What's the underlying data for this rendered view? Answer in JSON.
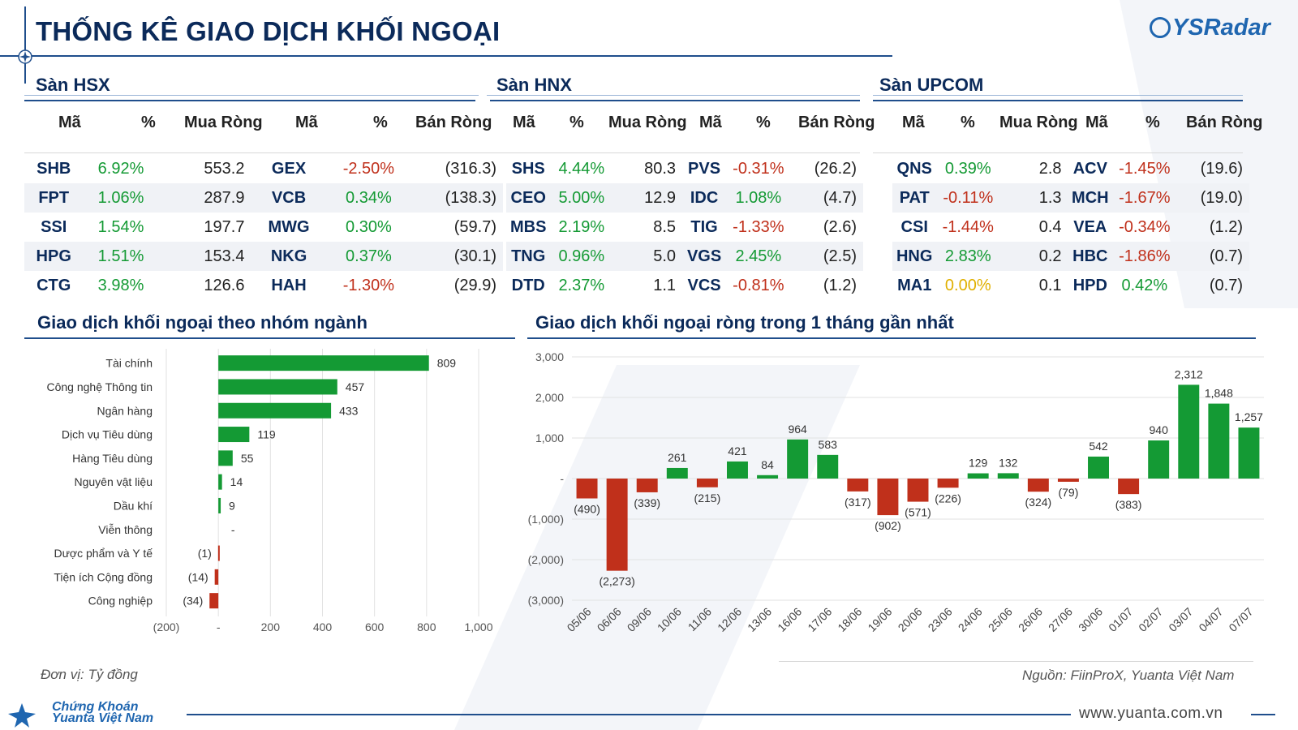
{
  "title": "THỐNG KÊ GIAO DỊCH KHỐI NGOẠI",
  "logo": "YSRadar",
  "markets": [
    {
      "name": "Sàn HSX",
      "headers": [
        "Mã",
        "%",
        "Mua Ròng",
        "Mã",
        "%",
        "Bán Ròng"
      ],
      "rows": [
        {
          "buy_code": "SHB",
          "buy_pct": "6.92%",
          "buy_dir": "up",
          "buy_val": "553.2",
          "sell_code": "GEX",
          "sell_pct": "-2.50%",
          "sell_dir": "down",
          "sell_val": "(316.3)"
        },
        {
          "buy_code": "FPT",
          "buy_pct": "1.06%",
          "buy_dir": "up",
          "buy_val": "287.9",
          "sell_code": "VCB",
          "sell_pct": "0.34%",
          "sell_dir": "up",
          "sell_val": "(138.3)"
        },
        {
          "buy_code": "SSI",
          "buy_pct": "1.54%",
          "buy_dir": "up",
          "buy_val": "197.7",
          "sell_code": "MWG",
          "sell_pct": "0.30%",
          "sell_dir": "up",
          "sell_val": "(59.7)"
        },
        {
          "buy_code": "HPG",
          "buy_pct": "1.51%",
          "buy_dir": "up",
          "buy_val": "153.4",
          "sell_code": "NKG",
          "sell_pct": "0.37%",
          "sell_dir": "up",
          "sell_val": "(30.1)"
        },
        {
          "buy_code": "CTG",
          "buy_pct": "3.98%",
          "buy_dir": "up",
          "buy_val": "126.6",
          "sell_code": "HAH",
          "sell_pct": "-1.30%",
          "sell_dir": "down",
          "sell_val": "(29.9)"
        }
      ]
    },
    {
      "name": "Sàn HNX",
      "headers": [
        "Mã",
        "%",
        "Mua Ròng",
        "Mã",
        "%",
        "Bán Ròng"
      ],
      "rows": [
        {
          "buy_code": "SHS",
          "buy_pct": "4.44%",
          "buy_dir": "up",
          "buy_val": "80.3",
          "sell_code": "PVS",
          "sell_pct": "-0.31%",
          "sell_dir": "down",
          "sell_val": "(26.2)"
        },
        {
          "buy_code": "CEO",
          "buy_pct": "5.00%",
          "buy_dir": "up",
          "buy_val": "12.9",
          "sell_code": "IDC",
          "sell_pct": "1.08%",
          "sell_dir": "up",
          "sell_val": "(4.7)"
        },
        {
          "buy_code": "MBS",
          "buy_pct": "2.19%",
          "buy_dir": "up",
          "buy_val": "8.5",
          "sell_code": "TIG",
          "sell_pct": "-1.33%",
          "sell_dir": "down",
          "sell_val": "(2.6)"
        },
        {
          "buy_code": "TNG",
          "buy_pct": "0.96%",
          "buy_dir": "up",
          "buy_val": "5.0",
          "sell_code": "VGS",
          "sell_pct": "2.45%",
          "sell_dir": "up",
          "sell_val": "(2.5)"
        },
        {
          "buy_code": "DTD",
          "buy_pct": "2.37%",
          "buy_dir": "up",
          "buy_val": "1.1",
          "sell_code": "VCS",
          "sell_pct": "-0.81%",
          "sell_dir": "down",
          "sell_val": "(1.2)"
        }
      ]
    },
    {
      "name": "Sàn UPCOM",
      "headers": [
        "Mã",
        "%",
        "Mua Ròng",
        "Mã",
        "%",
        "Bán Ròng"
      ],
      "rows": [
        {
          "buy_code": "QNS",
          "buy_pct": "0.39%",
          "buy_dir": "up",
          "buy_val": "2.8",
          "sell_code": "ACV",
          "sell_pct": "-1.45%",
          "sell_dir": "down",
          "sell_val": "(19.6)"
        },
        {
          "buy_code": "PAT",
          "buy_pct": "-0.11%",
          "buy_dir": "down",
          "buy_val": "1.3",
          "sell_code": "MCH",
          "sell_pct": "-1.67%",
          "sell_dir": "down",
          "sell_val": "(19.0)"
        },
        {
          "buy_code": "CSI",
          "buy_pct": "-1.44%",
          "buy_dir": "down",
          "buy_val": "0.4",
          "sell_code": "VEA",
          "sell_pct": "-0.34%",
          "sell_dir": "down",
          "sell_val": "(1.2)"
        },
        {
          "buy_code": "HNG",
          "buy_pct": "2.83%",
          "buy_dir": "up",
          "buy_val": "0.2",
          "sell_code": "HBC",
          "sell_pct": "-1.86%",
          "sell_dir": "down",
          "sell_val": "(0.7)"
        },
        {
          "buy_code": "MA1",
          "buy_pct": "0.00%",
          "buy_dir": "flat",
          "buy_val": "0.1",
          "sell_code": "HPD",
          "sell_pct": "0.42%",
          "sell_dir": "up",
          "sell_val": "(0.7)"
        }
      ]
    }
  ],
  "colors": {
    "positive": "#149a34",
    "negative": "#c0301b",
    "neutral": "#e0b000",
    "navy": "#0b2a5a"
  },
  "chart_data": [
    {
      "type": "bar",
      "orientation": "horizontal",
      "title": "Giao dịch khối ngoại theo nhóm ngành",
      "categories": [
        "Tài chính",
        "Công nghệ Thông tin",
        "Ngân hàng",
        "Dịch vụ Tiêu dùng",
        "Hàng Tiêu dùng",
        "Nguyên vật liệu",
        "Dầu khí",
        "Viễn thông",
        "Dược phẩm và Y tế",
        "Tiện ích Cộng đồng",
        "Công nghiệp"
      ],
      "values": [
        809,
        457,
        433,
        119,
        55,
        14,
        9,
        0,
        -1,
        -14,
        -34
      ],
      "data_labels": [
        "809",
        "457",
        "433",
        "119",
        "55",
        "14",
        "9",
        "-",
        "(1)",
        "(14)",
        "(34)"
      ],
      "xlim": [
        -200,
        1000
      ],
      "xticks": [
        "(200)",
        "-",
        "200",
        "400",
        "600",
        "800",
        "1,000"
      ]
    },
    {
      "type": "bar",
      "title": "Giao dịch khối ngoại ròng trong 1 tháng gần nhất",
      "categories": [
        "05/06",
        "06/06",
        "09/06",
        "10/06",
        "11/06",
        "12/06",
        "13/06",
        "16/06",
        "17/06",
        "18/06",
        "19/06",
        "20/06",
        "23/06",
        "24/06",
        "25/06",
        "26/06",
        "27/06",
        "30/06",
        "01/07",
        "02/07",
        "03/07",
        "04/07",
        "07/07"
      ],
      "values": [
        -490,
        -2273,
        -339,
        261,
        -215,
        421,
        84,
        964,
        583,
        -317,
        -902,
        -571,
        -226,
        129,
        132,
        -324,
        -79,
        542,
        -383,
        940,
        2312,
        1848,
        1257
      ],
      "data_labels": [
        "(490)",
        "(2,273)",
        "(339)",
        "261",
        "(215)",
        "421",
        "84",
        "964",
        "583",
        "(317)",
        "(902)",
        "(571)",
        "(226)",
        "129",
        "132",
        "(324)",
        "(79)",
        "542",
        "(383)",
        "940",
        "2,312",
        "1,848",
        "1,257"
      ],
      "ylim": [
        -3000,
        3000
      ],
      "yticks": [
        "3,000",
        "2,000",
        "1,000",
        "-",
        "(1,000)",
        "(2,000)",
        "(3,000)"
      ]
    }
  ],
  "footer": {
    "unit": "Đơn vị: Tỷ đồng",
    "source": "Nguồn: FiinProX, Yuanta Việt Nam",
    "brand_line1": "Chứng Khoán",
    "brand_line2": "Yuanta Việt Nam",
    "website": "www.yuanta.com.vn"
  }
}
